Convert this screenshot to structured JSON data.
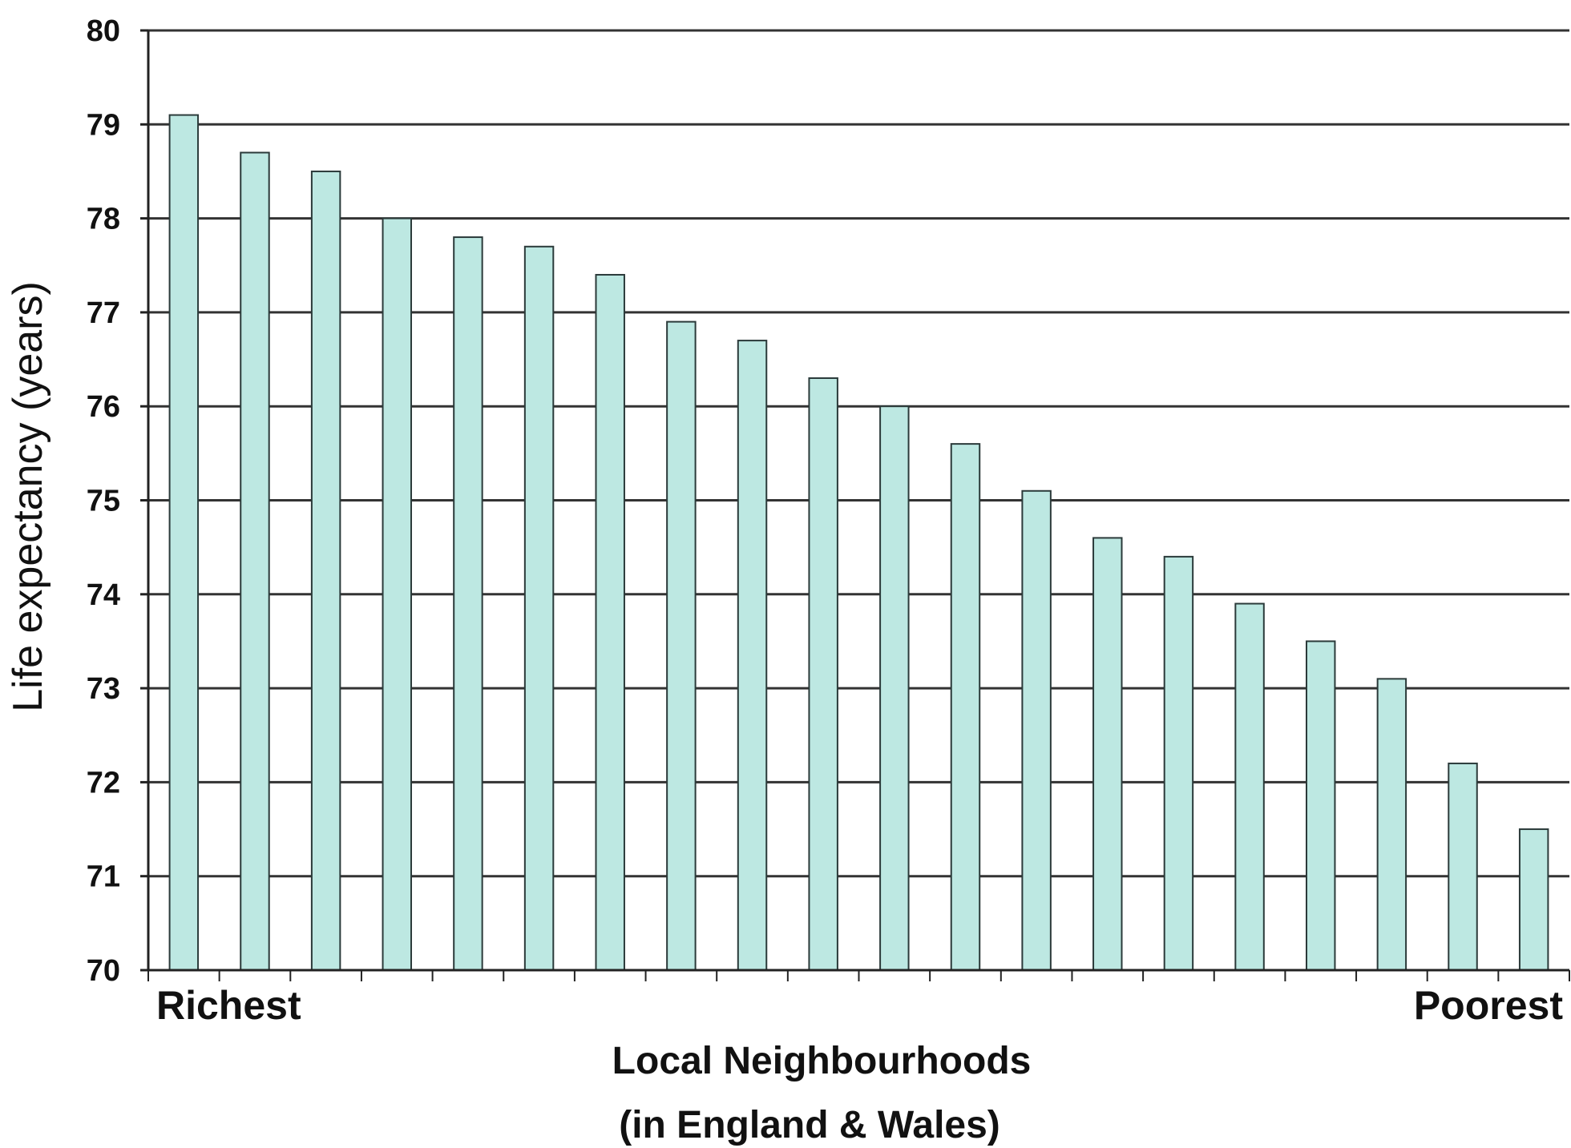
{
  "chart_data": {
    "type": "bar",
    "title": "",
    "ylabel": "Life expectancy (years)",
    "xlabel_lines": [
      "Local Neighbourhoods",
      "(in England & Wales)"
    ],
    "x_start_label": "Richest",
    "x_end_label": "Poorest",
    "ylim": [
      70,
      80
    ],
    "yticks": [
      70,
      71,
      72,
      73,
      74,
      75,
      76,
      77,
      78,
      79,
      80
    ],
    "grid": true,
    "legend": "none",
    "values": [
      79.1,
      78.7,
      78.5,
      78.0,
      77.8,
      77.7,
      77.4,
      76.9,
      76.7,
      76.3,
      76.0,
      75.6,
      75.1,
      74.6,
      74.4,
      73.9,
      73.5,
      73.1,
      72.2,
      71.5
    ],
    "colors": {
      "bar_fill": "#bde8e2",
      "bar_stroke": "#2b3a3a",
      "grid": "#333333",
      "axis": "#222222"
    }
  }
}
